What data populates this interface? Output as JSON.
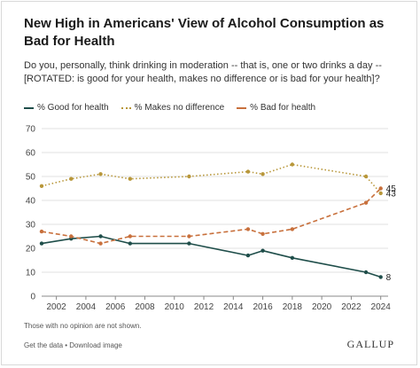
{
  "title": "New High in Americans' View of Alcohol Consumption as Bad for Health",
  "question": "Do you, personally, think drinking in moderation -- that is, one or two drinks a day -- [ROTATED: is good for your health, makes no difference or is bad for your health]?",
  "footnote": "Those with no opinion are not shown.",
  "links": "Get the data • Download image",
  "brand": "GALLUP",
  "chart_data": {
    "type": "line",
    "title": "New High in Americans' View of Alcohol Consumption as Bad for Health",
    "xlim": [
      2001,
      2024.5
    ],
    "ylim": [
      0,
      70
    ],
    "x_ticks": [
      2002,
      2004,
      2006,
      2008,
      2010,
      2012,
      2014,
      2016,
      2018,
      2020,
      2022,
      2024
    ],
    "y_ticks": [
      0,
      10,
      20,
      30,
      40,
      50,
      60,
      70
    ],
    "grid": true,
    "legend_position": "top-left",
    "series": [
      {
        "name": "% Good for health",
        "color": "#1f4e4a",
        "style": "solid",
        "x": [
          2001,
          2003,
          2005,
          2007,
          2011,
          2015,
          2016,
          2018,
          2023,
          2024
        ],
        "values": [
          22,
          24,
          25,
          22,
          22,
          17,
          19,
          16,
          10,
          8
        ],
        "end_label": "8"
      },
      {
        "name": "% Makes no difference",
        "color": "#b8973a",
        "style": "dotted",
        "x": [
          2001,
          2003,
          2005,
          2007,
          2011,
          2015,
          2016,
          2018,
          2023,
          2024
        ],
        "values": [
          46,
          49,
          51,
          49,
          50,
          52,
          51,
          55,
          50,
          43
        ],
        "end_label": "43"
      },
      {
        "name": "% Bad for health",
        "color": "#c8703c",
        "style": "dashed",
        "x": [
          2001,
          2003,
          2005,
          2007,
          2011,
          2015,
          2016,
          2018,
          2023,
          2024
        ],
        "values": [
          27,
          25,
          22,
          25,
          25,
          28,
          26,
          28,
          39,
          45
        ],
        "end_label": "45"
      }
    ]
  }
}
